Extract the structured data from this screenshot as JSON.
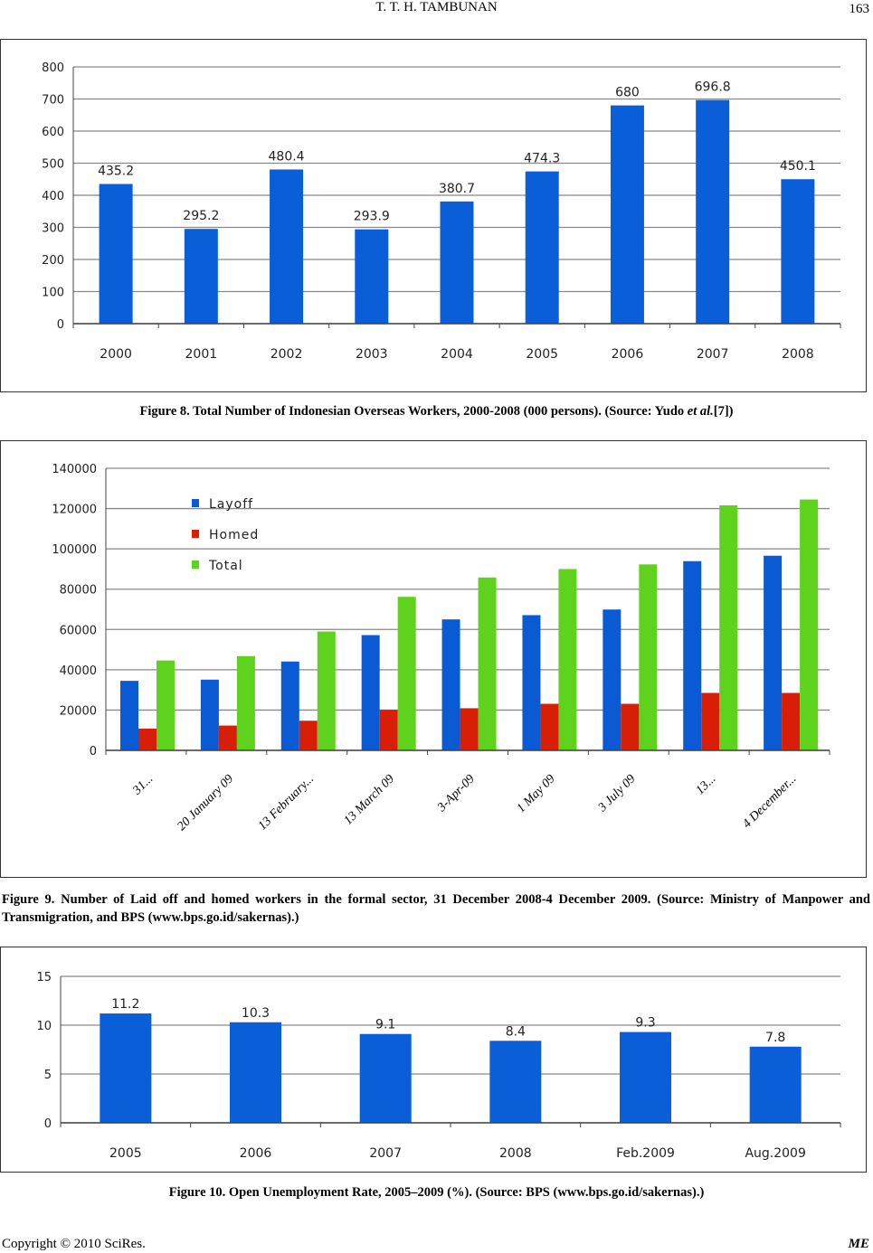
{
  "header": {
    "running_title": "T. T. H. TAMBUNAN",
    "page_number": "163"
  },
  "figure8": {
    "caption_main": "Figure 8. Total Number of Indonesian Overseas Workers, 2000-2008 (000 persons). (Source: Yudo ",
    "caption_italic": "et al.",
    "caption_end": "[7])"
  },
  "figure9": {
    "caption": "Figure 9. Number of Laid off and homed workers in the formal sector, 31 December 2008-4 December 2009. (Source: Ministry of Manpower and Transmigration, and BPS (www.bps.go.id/sakernas).)"
  },
  "figure10": {
    "caption": "Figure 10. Open Unemployment Rate, 2005–2009 (%). (Source: BPS (www.bps.go.id/sakernas).)"
  },
  "footer": {
    "copyright": "Copyright © 2010 SciRes.",
    "journal": "ME"
  },
  "chart_data": [
    {
      "type": "bar",
      "categories": [
        "2000",
        "2001",
        "2002",
        "2003",
        "2004",
        "2005",
        "2006",
        "2007",
        "2008"
      ],
      "values": [
        435.2,
        295.2,
        480.4,
        293.9,
        380.7,
        474.3,
        680,
        696.8,
        450.1
      ],
      "data_labels": [
        "435.2",
        "295.2",
        "480.4",
        "293.9",
        "380.7",
        "474.3",
        "680",
        "696.8",
        "450.1"
      ],
      "ylim": [
        0,
        800
      ],
      "yticks": [
        "0",
        "100",
        "200",
        "300",
        "400",
        "500",
        "600",
        "700",
        "800"
      ],
      "grid": true,
      "color": "#0a5fd8"
    },
    {
      "type": "bar",
      "categories": [
        "31...",
        "20 January 09",
        "13 February...",
        "13 March 09",
        "3-Apr-09",
        "1 May 09",
        "3 July 09",
        "13...",
        "4 December..."
      ],
      "series": [
        {
          "name": "Layoff",
          "color": "#0a5ad4",
          "values": [
            34500,
            35100,
            44100,
            57200,
            65000,
            67100,
            69900,
            93900,
            96600
          ]
        },
        {
          "name": "Homed",
          "color": "#d81e06",
          "values": [
            10800,
            12300,
            14700,
            20100,
            20900,
            23100,
            23100,
            28500,
            28500
          ]
        },
        {
          "name": "Total",
          "color": "#5fd21e",
          "values": [
            44600,
            46800,
            59000,
            76200,
            85800,
            90000,
            92300,
            121600,
            124500
          ]
        }
      ],
      "ylim": [
        0,
        140000
      ],
      "yticks": [
        "0",
        "20000",
        "40000",
        "60000",
        "80000",
        "100000",
        "120000",
        "140000"
      ],
      "grid": true,
      "legend": "top-left"
    },
    {
      "type": "bar",
      "categories": [
        "2005",
        "2006",
        "2007",
        "2008",
        "Feb.2009",
        "Aug.2009"
      ],
      "values": [
        11.2,
        10.3,
        9.1,
        8.4,
        9.3,
        7.8
      ],
      "data_labels": [
        "11.2",
        "10.3",
        "9.1",
        "8.4",
        "9.3",
        "7.8"
      ],
      "ylim": [
        0,
        15
      ],
      "yticks": [
        "0",
        "5",
        "10",
        "15"
      ],
      "grid": true,
      "color": "#0a5fd8"
    }
  ]
}
